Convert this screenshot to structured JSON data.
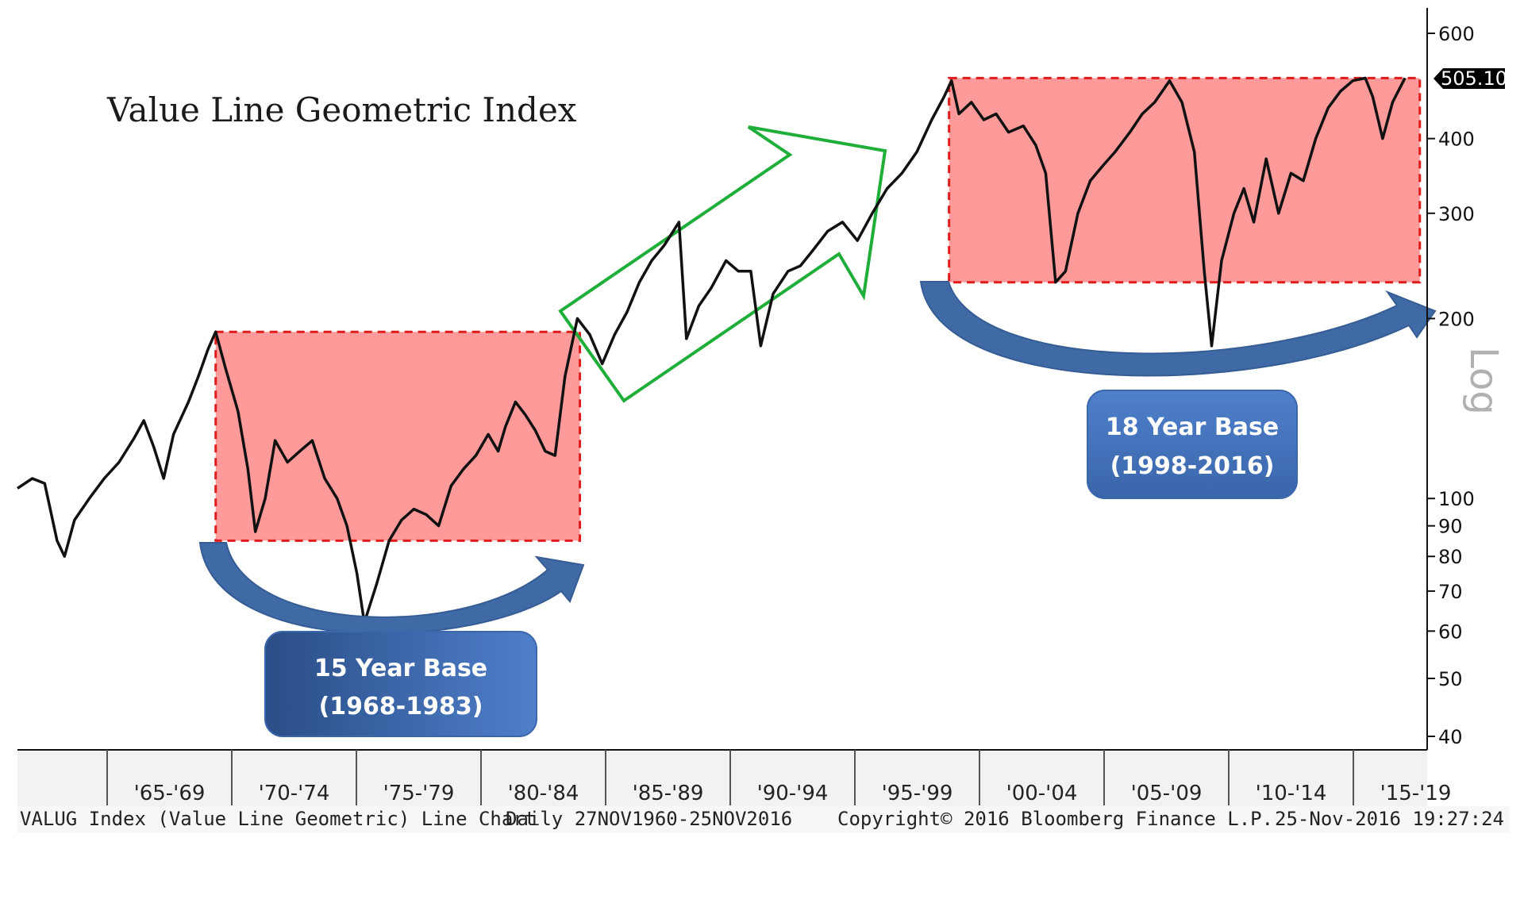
{
  "chart_data": {
    "type": "line",
    "title": "Value Line Geometric Index",
    "yscale": "log",
    "ylabel": "Log",
    "ylim": [
      35,
      650
    ],
    "y_ticks": [
      40,
      50,
      60,
      70,
      80,
      90,
      100,
      200,
      300,
      400,
      600
    ],
    "x_range": [
      1960.9,
      2016.9
    ],
    "x_categories": [
      "'65-'69",
      "'70-'74",
      "'75-'79",
      "'80-'84",
      "'85-'89",
      "'90-'94",
      "'95-'99",
      "'00-'04",
      "'05-'09",
      "'10-'14",
      "'15-'19"
    ],
    "last_value": "505.10",
    "series": [
      {
        "values": [
          [
            1960.9,
            104
          ],
          [
            1961.5,
            108
          ],
          [
            1962.0,
            106
          ],
          [
            1962.5,
            85
          ],
          [
            1962.8,
            80
          ],
          [
            1963.2,
            92
          ],
          [
            1963.8,
            100
          ],
          [
            1964.4,
            108
          ],
          [
            1965.0,
            115
          ],
          [
            1965.6,
            126
          ],
          [
            1966.0,
            135
          ],
          [
            1966.4,
            122
          ],
          [
            1966.8,
            108
          ],
          [
            1967.2,
            128
          ],
          [
            1967.8,
            145
          ],
          [
            1968.2,
            160
          ],
          [
            1968.6,
            178
          ],
          [
            1968.9,
            190
          ],
          [
            1969.3,
            165
          ],
          [
            1969.8,
            140
          ],
          [
            1970.2,
            112
          ],
          [
            1970.5,
            88
          ],
          [
            1970.9,
            100
          ],
          [
            1971.3,
            125
          ],
          [
            1971.8,
            115
          ],
          [
            1972.3,
            120
          ],
          [
            1972.8,
            125
          ],
          [
            1973.3,
            108
          ],
          [
            1973.8,
            100
          ],
          [
            1974.2,
            90
          ],
          [
            1974.6,
            75
          ],
          [
            1974.9,
            62
          ],
          [
            1975.4,
            72
          ],
          [
            1975.9,
            85
          ],
          [
            1976.4,
            92
          ],
          [
            1976.9,
            96
          ],
          [
            1977.4,
            94
          ],
          [
            1977.9,
            90
          ],
          [
            1978.4,
            105
          ],
          [
            1978.9,
            112
          ],
          [
            1979.4,
            118
          ],
          [
            1979.9,
            128
          ],
          [
            1980.3,
            120
          ],
          [
            1980.6,
            132
          ],
          [
            1981.0,
            145
          ],
          [
            1981.4,
            138
          ],
          [
            1981.8,
            130
          ],
          [
            1982.2,
            120
          ],
          [
            1982.6,
            118
          ],
          [
            1983.0,
            160
          ],
          [
            1983.5,
            200
          ],
          [
            1984.0,
            188
          ],
          [
            1984.5,
            168
          ],
          [
            1985.0,
            188
          ],
          [
            1985.5,
            205
          ],
          [
            1986.0,
            230
          ],
          [
            1986.5,
            250
          ],
          [
            1987.0,
            265
          ],
          [
            1987.6,
            290
          ],
          [
            1987.9,
            185
          ],
          [
            1988.4,
            210
          ],
          [
            1988.9,
            225
          ],
          [
            1989.5,
            250
          ],
          [
            1990.0,
            240
          ],
          [
            1990.5,
            240
          ],
          [
            1990.9,
            180
          ],
          [
            1991.4,
            220
          ],
          [
            1992.0,
            240
          ],
          [
            1992.5,
            245
          ],
          [
            1993.0,
            260
          ],
          [
            1993.6,
            280
          ],
          [
            1994.2,
            290
          ],
          [
            1994.8,
            270
          ],
          [
            1995.4,
            300
          ],
          [
            1996.0,
            330
          ],
          [
            1996.6,
            350
          ],
          [
            1997.2,
            380
          ],
          [
            1997.8,
            430
          ],
          [
            1998.3,
            470
          ],
          [
            1998.6,
            500
          ],
          [
            1998.9,
            440
          ],
          [
            1999.4,
            460
          ],
          [
            1999.9,
            430
          ],
          [
            2000.4,
            440
          ],
          [
            2000.9,
            410
          ],
          [
            2001.5,
            420
          ],
          [
            2002.0,
            390
          ],
          [
            2002.4,
            350
          ],
          [
            2002.8,
            230
          ],
          [
            2003.2,
            240
          ],
          [
            2003.7,
            300
          ],
          [
            2004.2,
            340
          ],
          [
            2004.7,
            360
          ],
          [
            2005.2,
            380
          ],
          [
            2005.8,
            410
          ],
          [
            2006.3,
            440
          ],
          [
            2006.8,
            460
          ],
          [
            2007.4,
            500
          ],
          [
            2007.9,
            460
          ],
          [
            2008.4,
            380
          ],
          [
            2008.8,
            240
          ],
          [
            2009.1,
            180
          ],
          [
            2009.5,
            250
          ],
          [
            2010.0,
            300
          ],
          [
            2010.4,
            330
          ],
          [
            2010.8,
            290
          ],
          [
            2011.3,
            370
          ],
          [
            2011.8,
            300
          ],
          [
            2012.3,
            350
          ],
          [
            2012.8,
            340
          ],
          [
            2013.3,
            400
          ],
          [
            2013.8,
            450
          ],
          [
            2014.3,
            480
          ],
          [
            2014.8,
            500
          ],
          [
            2015.3,
            505
          ],
          [
            2015.6,
            470
          ],
          [
            2016.0,
            400
          ],
          [
            2016.4,
            460
          ],
          [
            2016.9,
            505
          ]
        ]
      }
    ],
    "annotations": [
      {
        "text": [
          "15 Year Base",
          "(1968-1983)"
        ]
      },
      {
        "text": [
          "18 Year Base",
          "(1998-2016)"
        ]
      }
    ]
  },
  "footer": {
    "left": "VALUG Index (Value Line Geometric) Line Chart",
    "middle": "Daily 27NOV1960-25NOV2016",
    "copyright": "Copyright© 2016 Bloomberg Finance L.P.",
    "timestamp": "25-Nov-2016 19:27:24"
  },
  "colors": {
    "line": "#111111",
    "base_box": "#ff8a8a",
    "base_border": "#e01b1b",
    "trend_arrow": "#1fae3a",
    "curve_arrow": "#3f6aa6",
    "label_box": "#4472c4"
  }
}
